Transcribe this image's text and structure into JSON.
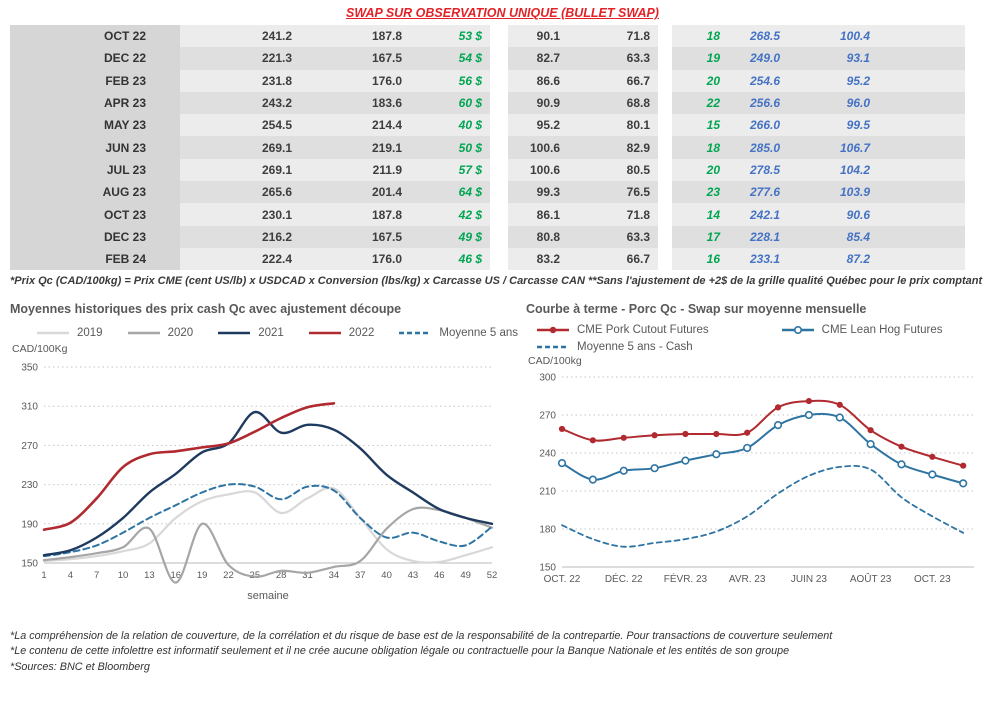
{
  "title": "SWAP SUR OBSERVATION UNIQUE (BULLET SWAP)",
  "colors": {
    "title_red": "#e32227",
    "positive_green": "#00a651",
    "swap_blue": "#4472c4",
    "row_light": "#ececec",
    "row_dark": "#dfdfdf",
    "month_col": "#d6d6d6",
    "navy_2021": "#1f3a5f",
    "red_2022": "#b02a30",
    "steel_blue": "#2e74a3"
  },
  "table": {
    "rows": [
      [
        "OCT 22",
        "241.2",
        "187.8",
        "53 $",
        "90.1",
        "71.8",
        "18",
        "268.5",
        "100.4"
      ],
      [
        "DEC 22",
        "221.3",
        "167.5",
        "54 $",
        "82.7",
        "63.3",
        "19",
        "249.0",
        "93.1"
      ],
      [
        "FEB 23",
        "231.8",
        "176.0",
        "56 $",
        "86.6",
        "66.7",
        "20",
        "254.6",
        "95.2"
      ],
      [
        "APR 23",
        "243.2",
        "183.6",
        "60 $",
        "90.9",
        "68.8",
        "22",
        "256.6",
        "96.0"
      ],
      [
        "MAY 23",
        "254.5",
        "214.4",
        "40 $",
        "95.2",
        "80.1",
        "15",
        "266.0",
        "99.5"
      ],
      [
        "JUN 23",
        "269.1",
        "219.1",
        "50 $",
        "100.6",
        "82.9",
        "18",
        "285.0",
        "106.7"
      ],
      [
        "JUL 23",
        "269.1",
        "211.9",
        "57 $",
        "100.6",
        "80.5",
        "20",
        "278.5",
        "104.2"
      ],
      [
        "AUG 23",
        "265.6",
        "201.4",
        "64 $",
        "99.3",
        "76.5",
        "23",
        "277.6",
        "103.9"
      ],
      [
        "OCT 23",
        "230.1",
        "187.8",
        "42 $",
        "86.1",
        "71.8",
        "14",
        "242.1",
        "90.6"
      ],
      [
        "DEC 23",
        "216.2",
        "167.5",
        "49 $",
        "80.8",
        "63.3",
        "17",
        "228.1",
        "85.4"
      ],
      [
        "FEB 24",
        "222.4",
        "176.0",
        "46 $",
        "83.2",
        "66.7",
        "16",
        "233.1",
        "87.2"
      ]
    ]
  },
  "table_footnote": "*Prix Qc (CAD/100kg) = Prix CME (cent US/lb) x USDCAD x Conversion (lbs/kg) x Carcasse US / Carcasse CAN **Sans l'ajustement de +2$ de la grille qualité Québec pour le prix comptant",
  "chart_data": [
    {
      "type": "line",
      "title": "Moyennes historiques des prix cash Qc avec ajustement découpe",
      "xlabel": "semaine",
      "ylabel": "CAD/100Kg",
      "ylim": [
        150,
        350
      ],
      "yticks": [
        150,
        190,
        230,
        270,
        310,
        350
      ],
      "grid": true,
      "legend_position": "top",
      "x": [
        1,
        4,
        7,
        10,
        13,
        16,
        19,
        22,
        25,
        28,
        31,
        34,
        37,
        40,
        43,
        46,
        49,
        52
      ],
      "xticks": [
        1,
        4,
        7,
        10,
        13,
        16,
        19,
        22,
        25,
        28,
        31,
        34,
        37,
        40,
        43,
        46,
        49,
        52
      ],
      "series": [
        {
          "name": "2019",
          "color": "#d8d8d8",
          "width": 2.2,
          "values": [
            152,
            154,
            157,
            162,
            170,
            196,
            213,
            220,
            222,
            201,
            216,
            226,
            196,
            164,
            152,
            151,
            158,
            166
          ]
        },
        {
          "name": "2020",
          "color": "#a6a6a6",
          "width": 2.2,
          "values": [
            153,
            156,
            160,
            166,
            185,
            130,
            190,
            148,
            136,
            142,
            140,
            146,
            152,
            185,
            205,
            204,
            196,
            186
          ]
        },
        {
          "name": "Moyenne 5 ans",
          "color": "#2e74a3",
          "width": 2,
          "dash": "6 4",
          "values": [
            157,
            161,
            168,
            181,
            196,
            209,
            222,
            230,
            228,
            215,
            228,
            224,
            196,
            176,
            181,
            172,
            168,
            187
          ]
        },
        {
          "name": "2021",
          "color": "#1f3a5f",
          "width": 2.4,
          "values": [
            158,
            163,
            176,
            196,
            222,
            241,
            263,
            272,
            304,
            283,
            291,
            286,
            267,
            240,
            222,
            205,
            196,
            190
          ]
        },
        {
          "name": "2022",
          "color": "#b02a30",
          "width": 2.6,
          "values": [
            184,
            191,
            216,
            248,
            261,
            264,
            268,
            272,
            284,
            298,
            309,
            313,
            null,
            null,
            null,
            null,
            null,
            null
          ]
        }
      ]
    },
    {
      "type": "line",
      "title": "Courbe à terme - Porc Qc - Swap sur moyenne mensuelle",
      "ylabel": "CAD/100kg",
      "ylim": [
        150,
        300
      ],
      "yticks": [
        150,
        180,
        210,
        240,
        270,
        300
      ],
      "grid": true,
      "legend_position": "top",
      "x": [
        0,
        1,
        2,
        3,
        4,
        5,
        6,
        7,
        8,
        9,
        10,
        11,
        12,
        13
      ],
      "xtick_positions": [
        0,
        2,
        4,
        6,
        8,
        10,
        12
      ],
      "xtick_labels": [
        "OCT. 22",
        "DÉC. 22",
        "FÉVR. 23",
        "AVR. 23",
        "JUIN 23",
        "AOÛT 23",
        "OCT. 23"
      ],
      "series": [
        {
          "name": "Moyenne 5 ans - Cash",
          "color": "#2e74a3",
          "width": 1.8,
          "dash": "5 4",
          "values": [
            183,
            172,
            166,
            169,
            172,
            178,
            190,
            208,
            222,
            229,
            227,
            205,
            190,
            177
          ]
        },
        {
          "name": "CME Lean Hog Futures",
          "color": "#2e74a3",
          "width": 2,
          "marker": "open",
          "values": [
            232,
            219,
            226,
            228,
            234,
            239,
            244,
            262,
            270,
            268,
            247,
            231,
            223,
            216
          ]
        },
        {
          "name": "CME Pork Cutout Futures",
          "color": "#b02a30",
          "width": 2,
          "marker": "filled",
          "values": [
            259,
            250,
            252,
            254,
            255,
            255,
            256,
            276,
            281,
            278,
            258,
            245,
            237,
            230
          ]
        }
      ]
    }
  ],
  "legends": {
    "left": [
      {
        "label": "2019",
        "color": "#d8d8d8",
        "style": "line"
      },
      {
        "label": "2020",
        "color": "#a6a6a6",
        "style": "line"
      },
      {
        "label": "2021",
        "color": "#1f3a5f",
        "style": "line"
      },
      {
        "label": "2022",
        "color": "#b02a30",
        "style": "line"
      },
      {
        "label": "Moyenne 5 ans",
        "color": "#2e74a3",
        "style": "dash"
      }
    ],
    "right_rows": [
      [
        {
          "label": "CME Pork Cutout Futures",
          "color": "#b02a30",
          "style": "line-dot"
        },
        {
          "label": "CME Lean Hog Futures",
          "color": "#2e74a3",
          "style": "line-circle"
        }
      ],
      [
        {
          "label": "Moyenne 5 ans - Cash",
          "color": "#2e74a3",
          "style": "dash"
        }
      ]
    ]
  },
  "footer_notes": [
    "*La compréhension de la relation de couverture, de la corrélation et du risque de base est de la responsabilité de la contrepartie. Pour transactions de couverture seulement",
    "*Le contenu de cette infolettre est informatif seulement et il ne crée aucune obligation légale ou contractuelle pour la Banque Nationale et les entités de son groupe",
    "*Sources: BNC et Bloomberg"
  ]
}
